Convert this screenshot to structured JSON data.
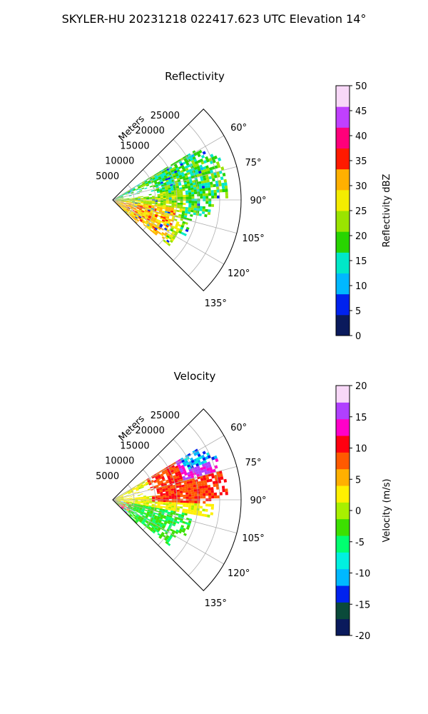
{
  "figure": {
    "title": "SKYLER-HU  20231218  022417.623 UTC Elevation 14°"
  },
  "chart_data": [
    {
      "type": "heatmap",
      "title": "Reflectivity",
      "projection": "polar-sector",
      "radial_label": "Meters",
      "radial_ticks": [
        "5000",
        "10000",
        "15000",
        "20000",
        "25000"
      ],
      "angle_ticks": [
        "60°",
        "75°",
        "90°",
        "105°",
        "120°",
        "135°"
      ],
      "azimuth_range_deg": [
        45,
        135
      ],
      "range_max_m": 30000,
      "colorbar": {
        "label": "Reflectivity dBZ",
        "ticks": [
          "0",
          "5",
          "10",
          "15",
          "20",
          "25",
          "30",
          "35",
          "40",
          "45",
          "50"
        ],
        "vmin": 0,
        "vmax": 50,
        "colors": [
          "#0a1a5c",
          "#0022ee",
          "#00b8ff",
          "#00e8c8",
          "#28d400",
          "#9ae400",
          "#f4ec00",
          "#ffb000",
          "#ff1a00",
          "#ff007a",
          "#c040ff",
          "#f8d8f8"
        ]
      }
    },
    {
      "type": "heatmap",
      "title": "Velocity",
      "projection": "polar-sector",
      "radial_label": "Meters",
      "radial_ticks": [
        "5000",
        "10000",
        "15000",
        "20000",
        "25000"
      ],
      "angle_ticks": [
        "60°",
        "75°",
        "90°",
        "105°",
        "120°",
        "135°"
      ],
      "azimuth_range_deg": [
        45,
        135
      ],
      "range_max_m": 30000,
      "colorbar": {
        "label": "Velocity (m/s)",
        "ticks": [
          "-20",
          "-15",
          "-10",
          "-5",
          "0",
          "5",
          "10",
          "15",
          "20"
        ],
        "vmin": -20,
        "vmax": 20,
        "colors": [
          "#0a1a5c",
          "#0a4a3a",
          "#0022ee",
          "#00b8ff",
          "#00f0e0",
          "#00ff70",
          "#3ce000",
          "#a8f000",
          "#fff000",
          "#ffb000",
          "#ff5a00",
          "#ff0010",
          "#ff00c8",
          "#b040ff",
          "#f8d8f8"
        ]
      }
    }
  ]
}
